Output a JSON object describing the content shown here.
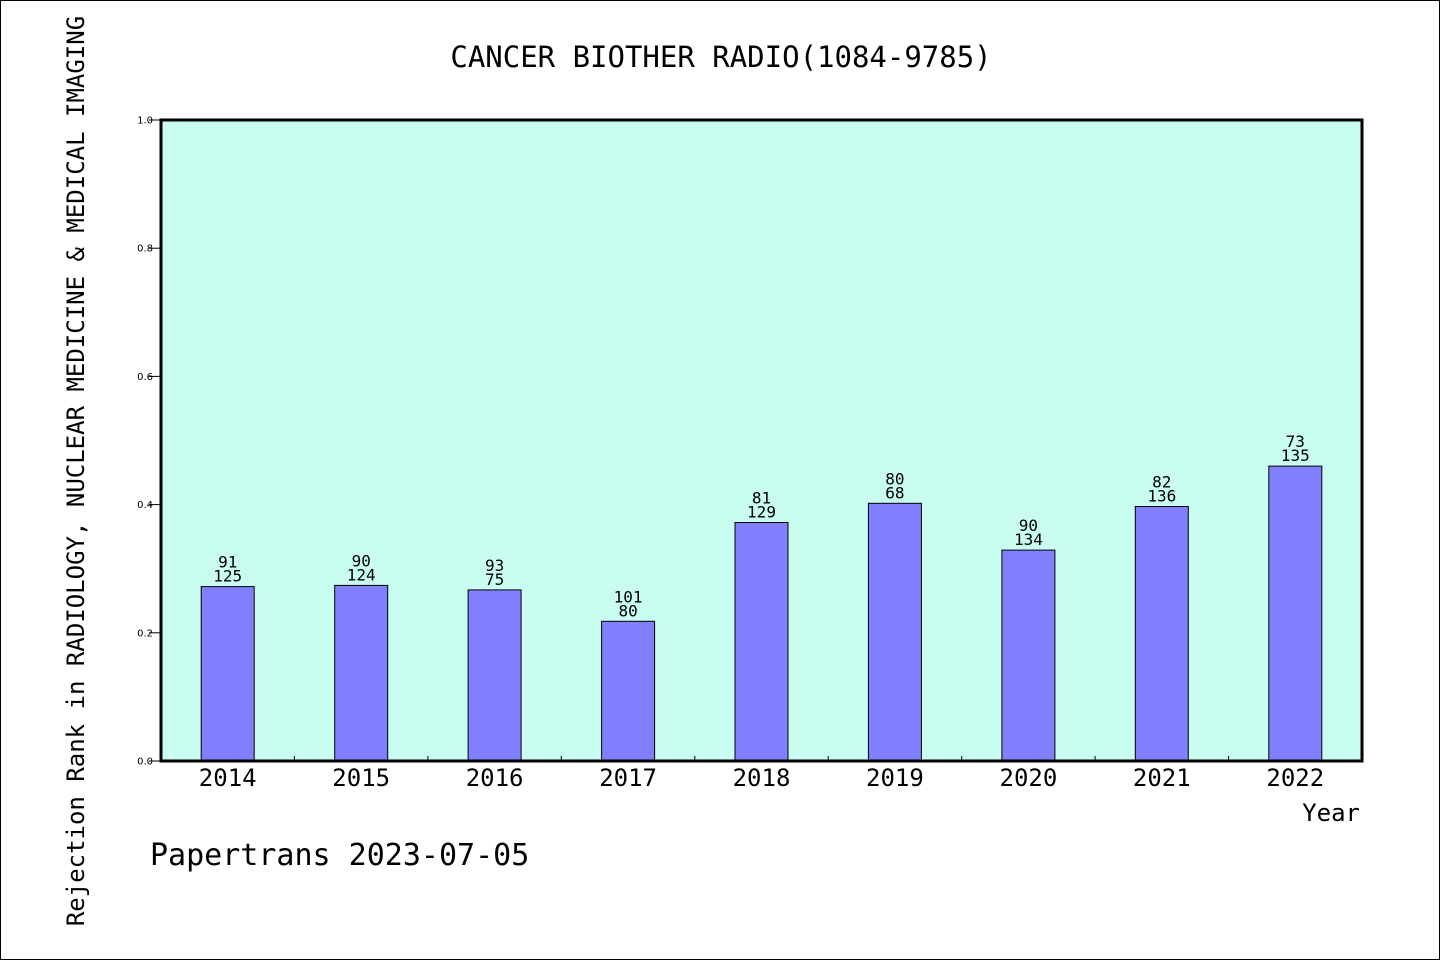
{
  "chart_data": {
    "type": "bar",
    "title": "CANCER BIOTHER RADIO(1084-9785)",
    "xlabel": "Year",
    "ylabel": "Rejection Rank in RADIOLOGY, NUCLEAR MEDICINE & MEDICAL IMAGING",
    "ylim": [
      0,
      1.0
    ],
    "yticks": [
      "0.0",
      "0.2",
      "0.4",
      "0.6",
      "0.8",
      "1.0"
    ],
    "categories": [
      "2014",
      "2015",
      "2016",
      "2017",
      "2018",
      "2019",
      "2020",
      "2021",
      "2022"
    ],
    "values": [
      0.272,
      0.274,
      0.267,
      0.218,
      0.372,
      0.402,
      0.329,
      0.397,
      0.46
    ],
    "labels_top": [
      "91",
      "90",
      "93",
      "101",
      "81",
      "80",
      "90",
      "82",
      "73"
    ],
    "labels_bottom": [
      "125",
      "124",
      "75",
      "80",
      "129",
      "68",
      "134",
      "136",
      "135"
    ],
    "grid": false,
    "colors": {
      "plot_bg": "#c8fdf0",
      "bar": "#8080ff",
      "bar_edge": "#000000"
    }
  },
  "footer": {
    "credit": "Papertrans 2023-07-05"
  }
}
